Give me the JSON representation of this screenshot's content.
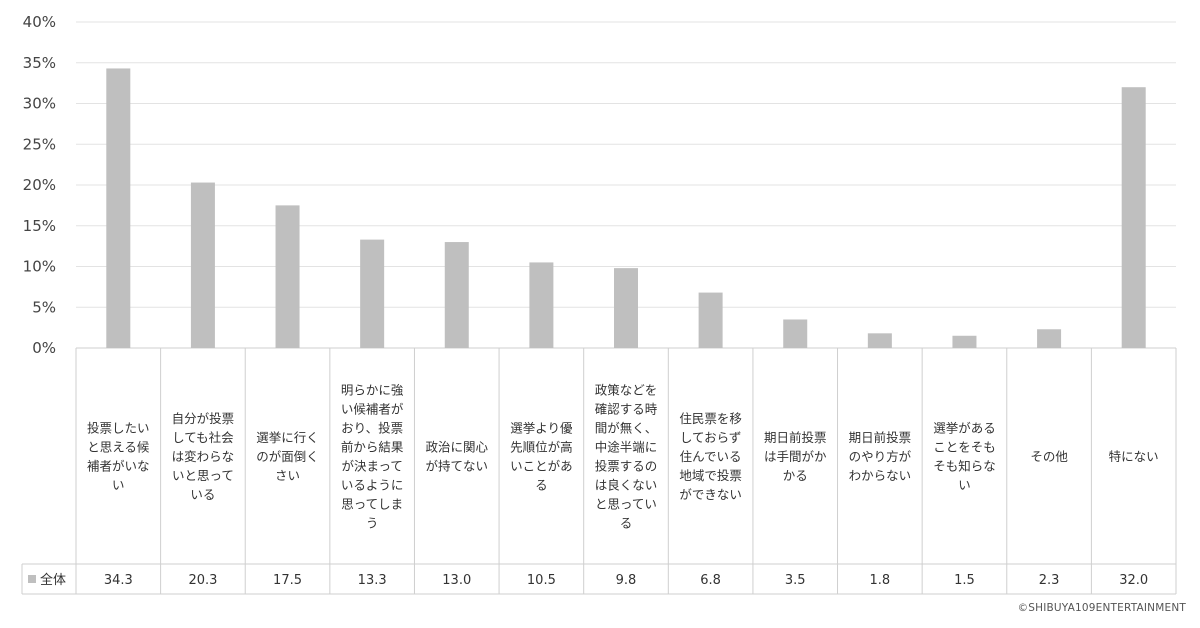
{
  "chart_data": {
    "type": "bar",
    "ylim": [
      0,
      40
    ],
    "y_ticks": [
      "0%",
      "5%",
      "10%",
      "15%",
      "20%",
      "25%",
      "30%",
      "35%",
      "40%"
    ],
    "categories": [
      [
        "投票したい",
        "と思える候",
        "補者がいな",
        "い"
      ],
      [
        "自分が投票",
        "しても社会",
        "は変わらな",
        "いと思って",
        "いる"
      ],
      [
        "選挙に行く",
        "のが面倒く",
        "さい"
      ],
      [
        "明らかに強",
        "い候補者が",
        "おり、投票",
        "前から結果",
        "が決まって",
        "いるように",
        "思ってしま",
        "う"
      ],
      [
        "政治に関心",
        "が持てない"
      ],
      [
        "選挙より優",
        "先順位が高",
        "いことがあ",
        "る"
      ],
      [
        "政策などを",
        "確認する時",
        "間が無く、",
        "中途半端に",
        "投票するの",
        "は良くない",
        "と思ってい",
        "る"
      ],
      [
        "住民票を移",
        "しておらず",
        "住んでいる",
        "地域で投票",
        "ができない"
      ],
      [
        "期日前投票",
        "は手間がか",
        "かる"
      ],
      [
        "期日前投票",
        "のやり方が",
        "わからない"
      ],
      [
        "選挙がある",
        "ことをそも",
        "そも知らな",
        "い"
      ],
      [
        "その他"
      ],
      [
        "特にない"
      ]
    ],
    "series": [
      {
        "name": "全体",
        "values": [
          34.3,
          20.3,
          17.5,
          13.3,
          13.0,
          10.5,
          9.8,
          6.8,
          3.5,
          1.8,
          1.5,
          2.3,
          32.0
        ],
        "labels": [
          "34.3",
          "20.3",
          "17.5",
          "13.3",
          "13.0",
          "10.5",
          "9.8",
          "6.8",
          "3.5",
          "1.8",
          "1.5",
          "2.3",
          "32.0"
        ],
        "color": "#bfbfbf"
      }
    ],
    "grid": true,
    "legend": "data-table-left"
  },
  "copyright": "©SHIBUYA109ENTERTAINMENT"
}
